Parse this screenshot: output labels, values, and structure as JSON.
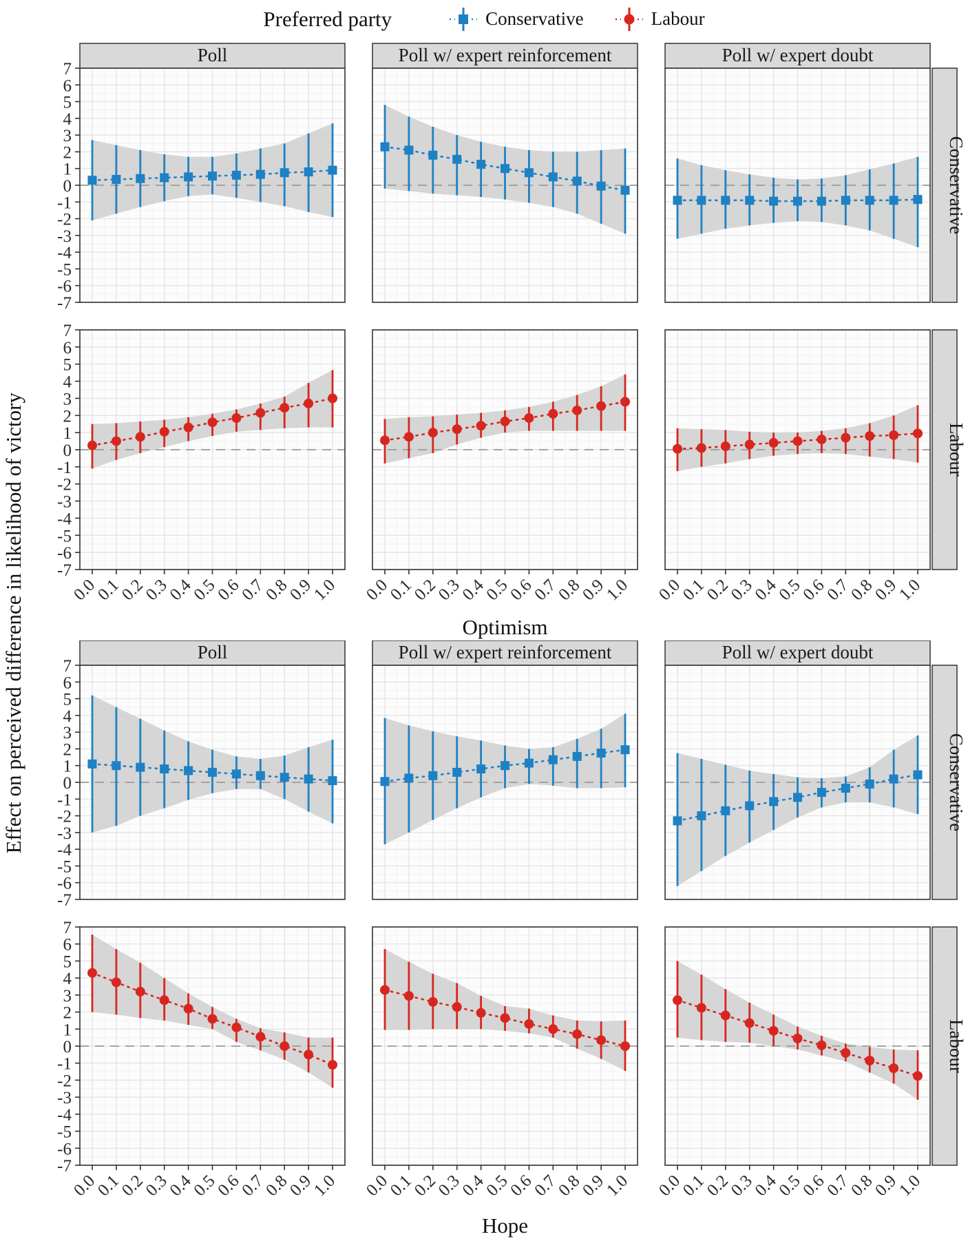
{
  "legend": {
    "title": "Preferred party",
    "items": [
      {
        "label": "Conservative",
        "marker": "square",
        "color": "#1e81c4"
      },
      {
        "label": "Labour",
        "marker": "circle",
        "color": "#d7261f"
      }
    ]
  },
  "y_axis_label": "Effect on perceived difference in likelihood of victory",
  "colors": {
    "conservative": "#1e81c4",
    "labour": "#d7261f",
    "ribbon": "#d2d2d2",
    "strip_bg": "#d9d9d9",
    "panel_bg": "#fcfcfc",
    "grid_major": "#e4e4e4",
    "grid_minor": "#f3f3f3",
    "zero_line": "#9a9a9a",
    "border": "#333333"
  },
  "axes": {
    "y_ticks": [
      7,
      6,
      5,
      4,
      3,
      2,
      1,
      0,
      -1,
      -2,
      -3,
      -4,
      -5,
      -6,
      -7
    ],
    "ylim": [
      -7,
      7
    ],
    "x_tick_labels": [
      "0.0",
      "0.1",
      "0.2",
      "0.3",
      "0.4",
      "0.5",
      "0.6",
      "0.7",
      "0.8",
      "0.9",
      "1.0"
    ]
  },
  "chart_data": [
    {
      "type": "line",
      "xlabel": "Optimism",
      "columns": [
        "Poll",
        "Poll w/ expert reinforcement",
        "Poll w/ expert doubt"
      ],
      "rows": [
        "Conservative",
        "Labour"
      ],
      "x": [
        0.0,
        0.1,
        0.2,
        0.3,
        0.4,
        0.5,
        0.6,
        0.7,
        0.8,
        0.9,
        1.0
      ],
      "panels": [
        {
          "row": "Conservative",
          "col": "Poll",
          "est": [
            0.3,
            0.35,
            0.4,
            0.45,
            0.5,
            0.55,
            0.6,
            0.65,
            0.75,
            0.8,
            0.9
          ],
          "lo": [
            -2.1,
            -1.7,
            -1.3,
            -0.95,
            -0.65,
            -0.55,
            -0.75,
            -1.0,
            -1.25,
            -1.6,
            -1.9
          ],
          "hi": [
            2.7,
            2.4,
            2.1,
            1.85,
            1.7,
            1.7,
            1.9,
            2.2,
            2.5,
            3.1,
            3.7
          ]
        },
        {
          "row": "Conservative",
          "col": "Poll w/ expert reinforcement",
          "est": [
            2.3,
            2.1,
            1.8,
            1.55,
            1.25,
            1.0,
            0.75,
            0.5,
            0.25,
            -0.05,
            -0.3
          ],
          "lo": [
            -0.2,
            -0.35,
            -0.5,
            -0.6,
            -0.7,
            -0.85,
            -1.05,
            -1.3,
            -1.7,
            -2.3,
            -2.9
          ],
          "hi": [
            4.8,
            4.1,
            3.5,
            3.0,
            2.6,
            2.3,
            2.1,
            2.0,
            2.0,
            2.1,
            2.2
          ]
        },
        {
          "row": "Conservative",
          "col": "Poll w/ expert doubt",
          "est": [
            -0.9,
            -0.9,
            -0.9,
            -0.9,
            -0.95,
            -0.95,
            -0.95,
            -0.9,
            -0.9,
            -0.9,
            -0.85
          ],
          "lo": [
            -3.2,
            -2.9,
            -2.6,
            -2.4,
            -2.25,
            -2.15,
            -2.2,
            -2.4,
            -2.7,
            -3.2,
            -3.7
          ],
          "hi": [
            1.6,
            1.2,
            0.9,
            0.65,
            0.45,
            0.35,
            0.4,
            0.6,
            0.95,
            1.3,
            1.7
          ]
        },
        {
          "row": "Labour",
          "col": "Poll",
          "est": [
            0.25,
            0.5,
            0.75,
            1.05,
            1.3,
            1.6,
            1.85,
            2.15,
            2.45,
            2.7,
            3.0
          ],
          "lo": [
            -1.1,
            -0.6,
            -0.2,
            0.15,
            0.5,
            0.8,
            1.05,
            1.15,
            1.25,
            1.3,
            1.3
          ],
          "hi": [
            1.5,
            1.55,
            1.65,
            1.75,
            1.9,
            2.1,
            2.35,
            2.7,
            3.1,
            3.9,
            4.65
          ]
        },
        {
          "row": "Labour",
          "col": "Poll w/ expert reinforcement",
          "est": [
            0.55,
            0.75,
            1.0,
            1.2,
            1.4,
            1.65,
            1.85,
            2.1,
            2.3,
            2.55,
            2.8
          ],
          "lo": [
            -0.8,
            -0.5,
            -0.2,
            0.3,
            0.7,
            1.0,
            1.1,
            1.1,
            1.1,
            1.1,
            1.1
          ],
          "hi": [
            1.8,
            1.9,
            1.95,
            2.05,
            2.15,
            2.3,
            2.5,
            2.8,
            3.2,
            3.7,
            4.4
          ]
        },
        {
          "row": "Labour",
          "col": "Poll w/ expert doubt",
          "est": [
            0.05,
            0.1,
            0.2,
            0.3,
            0.4,
            0.5,
            0.6,
            0.7,
            0.8,
            0.85,
            0.95
          ],
          "lo": [
            -1.25,
            -1.0,
            -0.8,
            -0.55,
            -0.35,
            -0.25,
            -0.2,
            -0.25,
            -0.4,
            -0.55,
            -0.75
          ],
          "hi": [
            1.25,
            1.2,
            1.15,
            1.05,
            1.0,
            1.0,
            1.1,
            1.25,
            1.55,
            2.0,
            2.6
          ]
        }
      ]
    },
    {
      "type": "line",
      "xlabel": "Hope",
      "columns": [
        "Poll",
        "Poll w/ expert reinforcement",
        "Poll w/ expert doubt"
      ],
      "rows": [
        "Conservative",
        "Labour"
      ],
      "x": [
        0.0,
        0.1,
        0.2,
        0.3,
        0.4,
        0.5,
        0.6,
        0.7,
        0.8,
        0.9,
        1.0
      ],
      "panels": [
        {
          "row": "Conservative",
          "col": "Poll",
          "est": [
            1.1,
            1.0,
            0.9,
            0.8,
            0.7,
            0.6,
            0.5,
            0.4,
            0.3,
            0.2,
            0.1
          ],
          "lo": [
            -3.0,
            -2.6,
            -2.0,
            -1.55,
            -1.05,
            -0.65,
            -0.4,
            -0.4,
            -1.0,
            -1.75,
            -2.45
          ],
          "hi": [
            5.2,
            4.5,
            3.8,
            3.1,
            2.45,
            1.95,
            1.55,
            1.4,
            1.6,
            2.1,
            2.55
          ]
        },
        {
          "row": "Conservative",
          "col": "Poll w/ expert reinforcement",
          "est": [
            0.05,
            0.25,
            0.4,
            0.6,
            0.8,
            1.0,
            1.15,
            1.35,
            1.55,
            1.75,
            1.95
          ],
          "lo": [
            -3.7,
            -3.0,
            -2.25,
            -1.55,
            -0.9,
            -0.35,
            -0.1,
            -0.2,
            -0.35,
            -0.35,
            -0.3
          ],
          "hi": [
            3.85,
            3.4,
            3.05,
            2.75,
            2.5,
            2.2,
            2.0,
            2.1,
            2.6,
            3.2,
            4.1
          ]
        },
        {
          "row": "Conservative",
          "col": "Poll w/ expert doubt",
          "est": [
            -2.3,
            -2.0,
            -1.7,
            -1.4,
            -1.15,
            -0.9,
            -0.6,
            -0.35,
            -0.1,
            0.2,
            0.45
          ],
          "lo": [
            -6.2,
            -5.3,
            -4.4,
            -3.6,
            -2.85,
            -2.1,
            -1.5,
            -1.2,
            -1.2,
            -1.5,
            -1.9
          ],
          "hi": [
            1.75,
            1.4,
            1.05,
            0.7,
            0.5,
            0.3,
            0.25,
            0.35,
            0.9,
            1.95,
            2.8
          ]
        },
        {
          "row": "Labour",
          "col": "Poll",
          "est": [
            4.3,
            3.75,
            3.2,
            2.7,
            2.2,
            1.6,
            1.1,
            0.55,
            0.0,
            -0.5,
            -1.1
          ],
          "lo": [
            2.0,
            1.85,
            1.65,
            1.5,
            1.25,
            1.0,
            0.25,
            -0.25,
            -0.8,
            -1.55,
            -2.45
          ],
          "hi": [
            6.55,
            5.7,
            4.9,
            4.0,
            3.1,
            2.3,
            1.6,
            1.05,
            0.8,
            0.5,
            0.5
          ]
        },
        {
          "row": "Labour",
          "col": "Poll w/ expert reinforcement",
          "est": [
            3.3,
            2.95,
            2.6,
            2.3,
            1.95,
            1.65,
            1.3,
            1.0,
            0.7,
            0.35,
            0.0
          ],
          "lo": [
            0.95,
            0.95,
            1.0,
            1.0,
            1.0,
            0.9,
            0.75,
            0.5,
            -0.15,
            -0.75,
            -1.45
          ],
          "hi": [
            5.7,
            4.95,
            4.25,
            3.7,
            2.95,
            2.35,
            2.2,
            1.8,
            1.5,
            1.45,
            1.5
          ]
        },
        {
          "row": "Labour",
          "col": "Poll w/ expert doubt",
          "est": [
            2.7,
            2.25,
            1.8,
            1.35,
            0.9,
            0.45,
            0.05,
            -0.4,
            -0.85,
            -1.3,
            -1.75
          ],
          "lo": [
            0.5,
            0.35,
            0.25,
            0.2,
            0.0,
            -0.2,
            -0.55,
            -0.9,
            -1.55,
            -2.2,
            -3.15
          ],
          "hi": [
            5.0,
            4.2,
            3.35,
            2.55,
            1.85,
            1.15,
            0.6,
            0.15,
            -0.05,
            -0.2,
            -0.25
          ]
        }
      ]
    }
  ]
}
